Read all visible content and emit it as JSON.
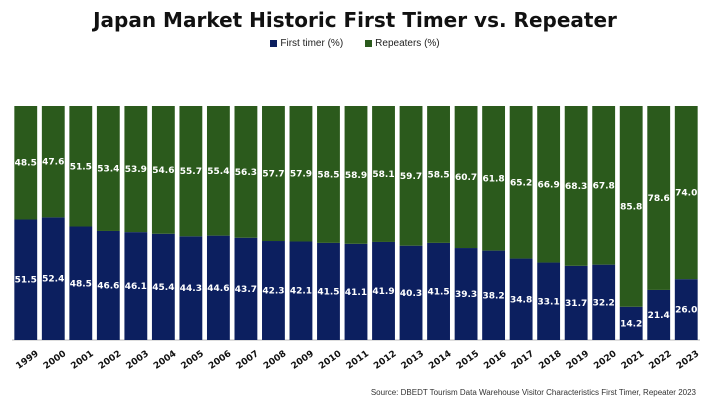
{
  "chart_data": {
    "type": "bar",
    "stacked": true,
    "title": "Japan Market Historic First Timer vs. Repeater",
    "categories": [
      "1999",
      "2000",
      "2001",
      "2002",
      "2003",
      "2004",
      "2005",
      "2006",
      "2007",
      "2008",
      "2009",
      "2010",
      "2011",
      "2012",
      "2013",
      "2014",
      "2015",
      "2016",
      "2017",
      "2018",
      "2019",
      "2020",
      "2021",
      "2022",
      "2023"
    ],
    "series": [
      {
        "name": "First timer (%)",
        "color": "#0c1f5f",
        "values": [
          51.5,
          52.4,
          48.5,
          46.6,
          46.1,
          45.4,
          44.3,
          44.6,
          43.7,
          42.3,
          42.1,
          41.5,
          41.1,
          41.9,
          40.3,
          41.5,
          39.3,
          38.2,
          34.8,
          33.1,
          31.7,
          32.2,
          14.2,
          21.4,
          26.0
        ]
      },
      {
        "name": "Repeaters (%)",
        "color": "#2b5a1c",
        "values": [
          48.5,
          47.6,
          51.5,
          53.4,
          53.9,
          54.6,
          55.7,
          55.4,
          56.3,
          57.7,
          57.9,
          58.5,
          58.9,
          58.1,
          59.7,
          58.5,
          60.7,
          61.8,
          65.2,
          66.9,
          68.3,
          67.8,
          85.8,
          78.6,
          74.0
        ]
      }
    ],
    "ylim": [
      0,
      100
    ],
    "legend_position": "top-center",
    "grid": false
  },
  "source": "Source: DBEDT Tourism Data Warehouse Visitor Characteristics First Timer, Repeater 2023"
}
